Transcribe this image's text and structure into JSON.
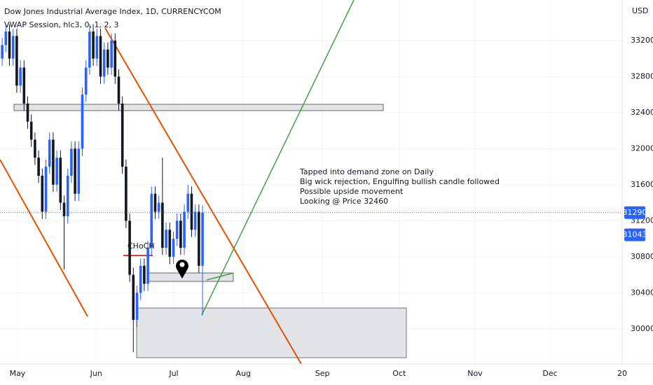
{
  "chart_data": {
    "type": "candlestick",
    "title": "Dow Jones Industrial Average Index, 1D, CURRENCYCOM",
    "indicator": "VWAP Session, hlc3, 0, 1, 2, 3",
    "currency": "USD",
    "zone_label": "CHoCH",
    "annotations": [
      "Tapped into demand zone on Daily",
      "Big wick rejection, Engulfing bullish candle followed",
      "Possible upside movement",
      "Looking @ Price 32460"
    ],
    "up_color": "#2962ff",
    "down_color": "#131722",
    "open": [
      33000,
      33150,
      33300,
      33000,
      33250,
      32700,
      32900,
      32500,
      32300,
      32100,
      31900,
      31700,
      31300,
      31800,
      32100,
      31600,
      31900,
      31400,
      31250,
      31700,
      32000,
      31500,
      32000,
      32600,
      32900,
      33300,
      33000,
      33250,
      32800,
      33100,
      32900,
      33200,
      32800,
      32500,
      31800,
      31200,
      30600,
      30100,
      30400,
      30700,
      30500,
      30900,
      31500,
      31300,
      31400,
      30900,
      31100,
      30800,
      31000,
      31200,
      30900,
      31300,
      31500,
      31100,
      31300,
      30700
    ],
    "high": [
      33230,
      33380,
      33380,
      33330,
      33330,
      32980,
      32980,
      32580,
      32380,
      32180,
      31980,
      31780,
      31880,
      32180,
      32180,
      31980,
      31980,
      31480,
      31780,
      32080,
      32080,
      32080,
      32680,
      32980,
      33380,
      33380,
      33330,
      33330,
      33180,
      33180,
      33280,
      33280,
      32880,
      32580,
      31880,
      31280,
      30680,
      30480,
      30780,
      30780,
      30980,
      31580,
      31580,
      31480,
      31900,
      31180,
      31180,
      31080,
      31280,
      31280,
      31380,
      31600,
      31580,
      31380,
      31380,
      31370
    ],
    "low": [
      32920,
      33070,
      32920,
      32920,
      32620,
      32620,
      32420,
      32220,
      32020,
      31820,
      31620,
      31220,
      31220,
      31720,
      31520,
      31520,
      31320,
      30660,
      31170,
      31620,
      31420,
      31420,
      31920,
      32520,
      32820,
      32920,
      32920,
      32720,
      32720,
      32820,
      32820,
      32720,
      32420,
      31720,
      31120,
      30520,
      29740,
      30020,
      30320,
      30420,
      30420,
      30820,
      31220,
      31220,
      30820,
      30820,
      30720,
      30720,
      30920,
      30820,
      30820,
      31220,
      31020,
      31020,
      30620,
      30150
    ],
    "close": [
      33150,
      33300,
      33000,
      33250,
      32700,
      32900,
      32500,
      32300,
      32100,
      31900,
      31700,
      31300,
      31800,
      32100,
      31600,
      31900,
      31400,
      31250,
      31700,
      32000,
      31500,
      32000,
      32600,
      32900,
      33300,
      33000,
      33250,
      32800,
      33100,
      32900,
      33200,
      32800,
      32500,
      31800,
      31200,
      30600,
      30100,
      30400,
      30700,
      30500,
      30900,
      31500,
      31300,
      31400,
      30900,
      31100,
      30800,
      31000,
      31200,
      30900,
      31300,
      31500,
      31100,
      31300,
      30700,
      31290
    ],
    "price_labels": [
      31290,
      31043
    ],
    "xlim": [
      -0.6,
      170.2
    ],
    "xticks": [
      {
        "value": 4.2,
        "label": "May"
      },
      {
        "value": 25.8,
        "label": "Jun"
      },
      {
        "value": 47.1,
        "label": "Jul"
      },
      {
        "value": 66.2,
        "label": "Aug"
      },
      {
        "value": 87.9,
        "label": "Sep"
      },
      {
        "value": 109,
        "label": "Oct"
      },
      {
        "value": 129.8,
        "label": "Nov"
      },
      {
        "value": 150.4,
        "label": "Dec"
      },
      {
        "value": 170.2,
        "label": "20"
      }
    ],
    "ylim": [
      29610,
      33650
    ],
    "yticks": [
      30000,
      30400,
      30800,
      31200,
      31600,
      32000,
      32400,
      32800,
      33200
    ],
    "grid": true
  }
}
